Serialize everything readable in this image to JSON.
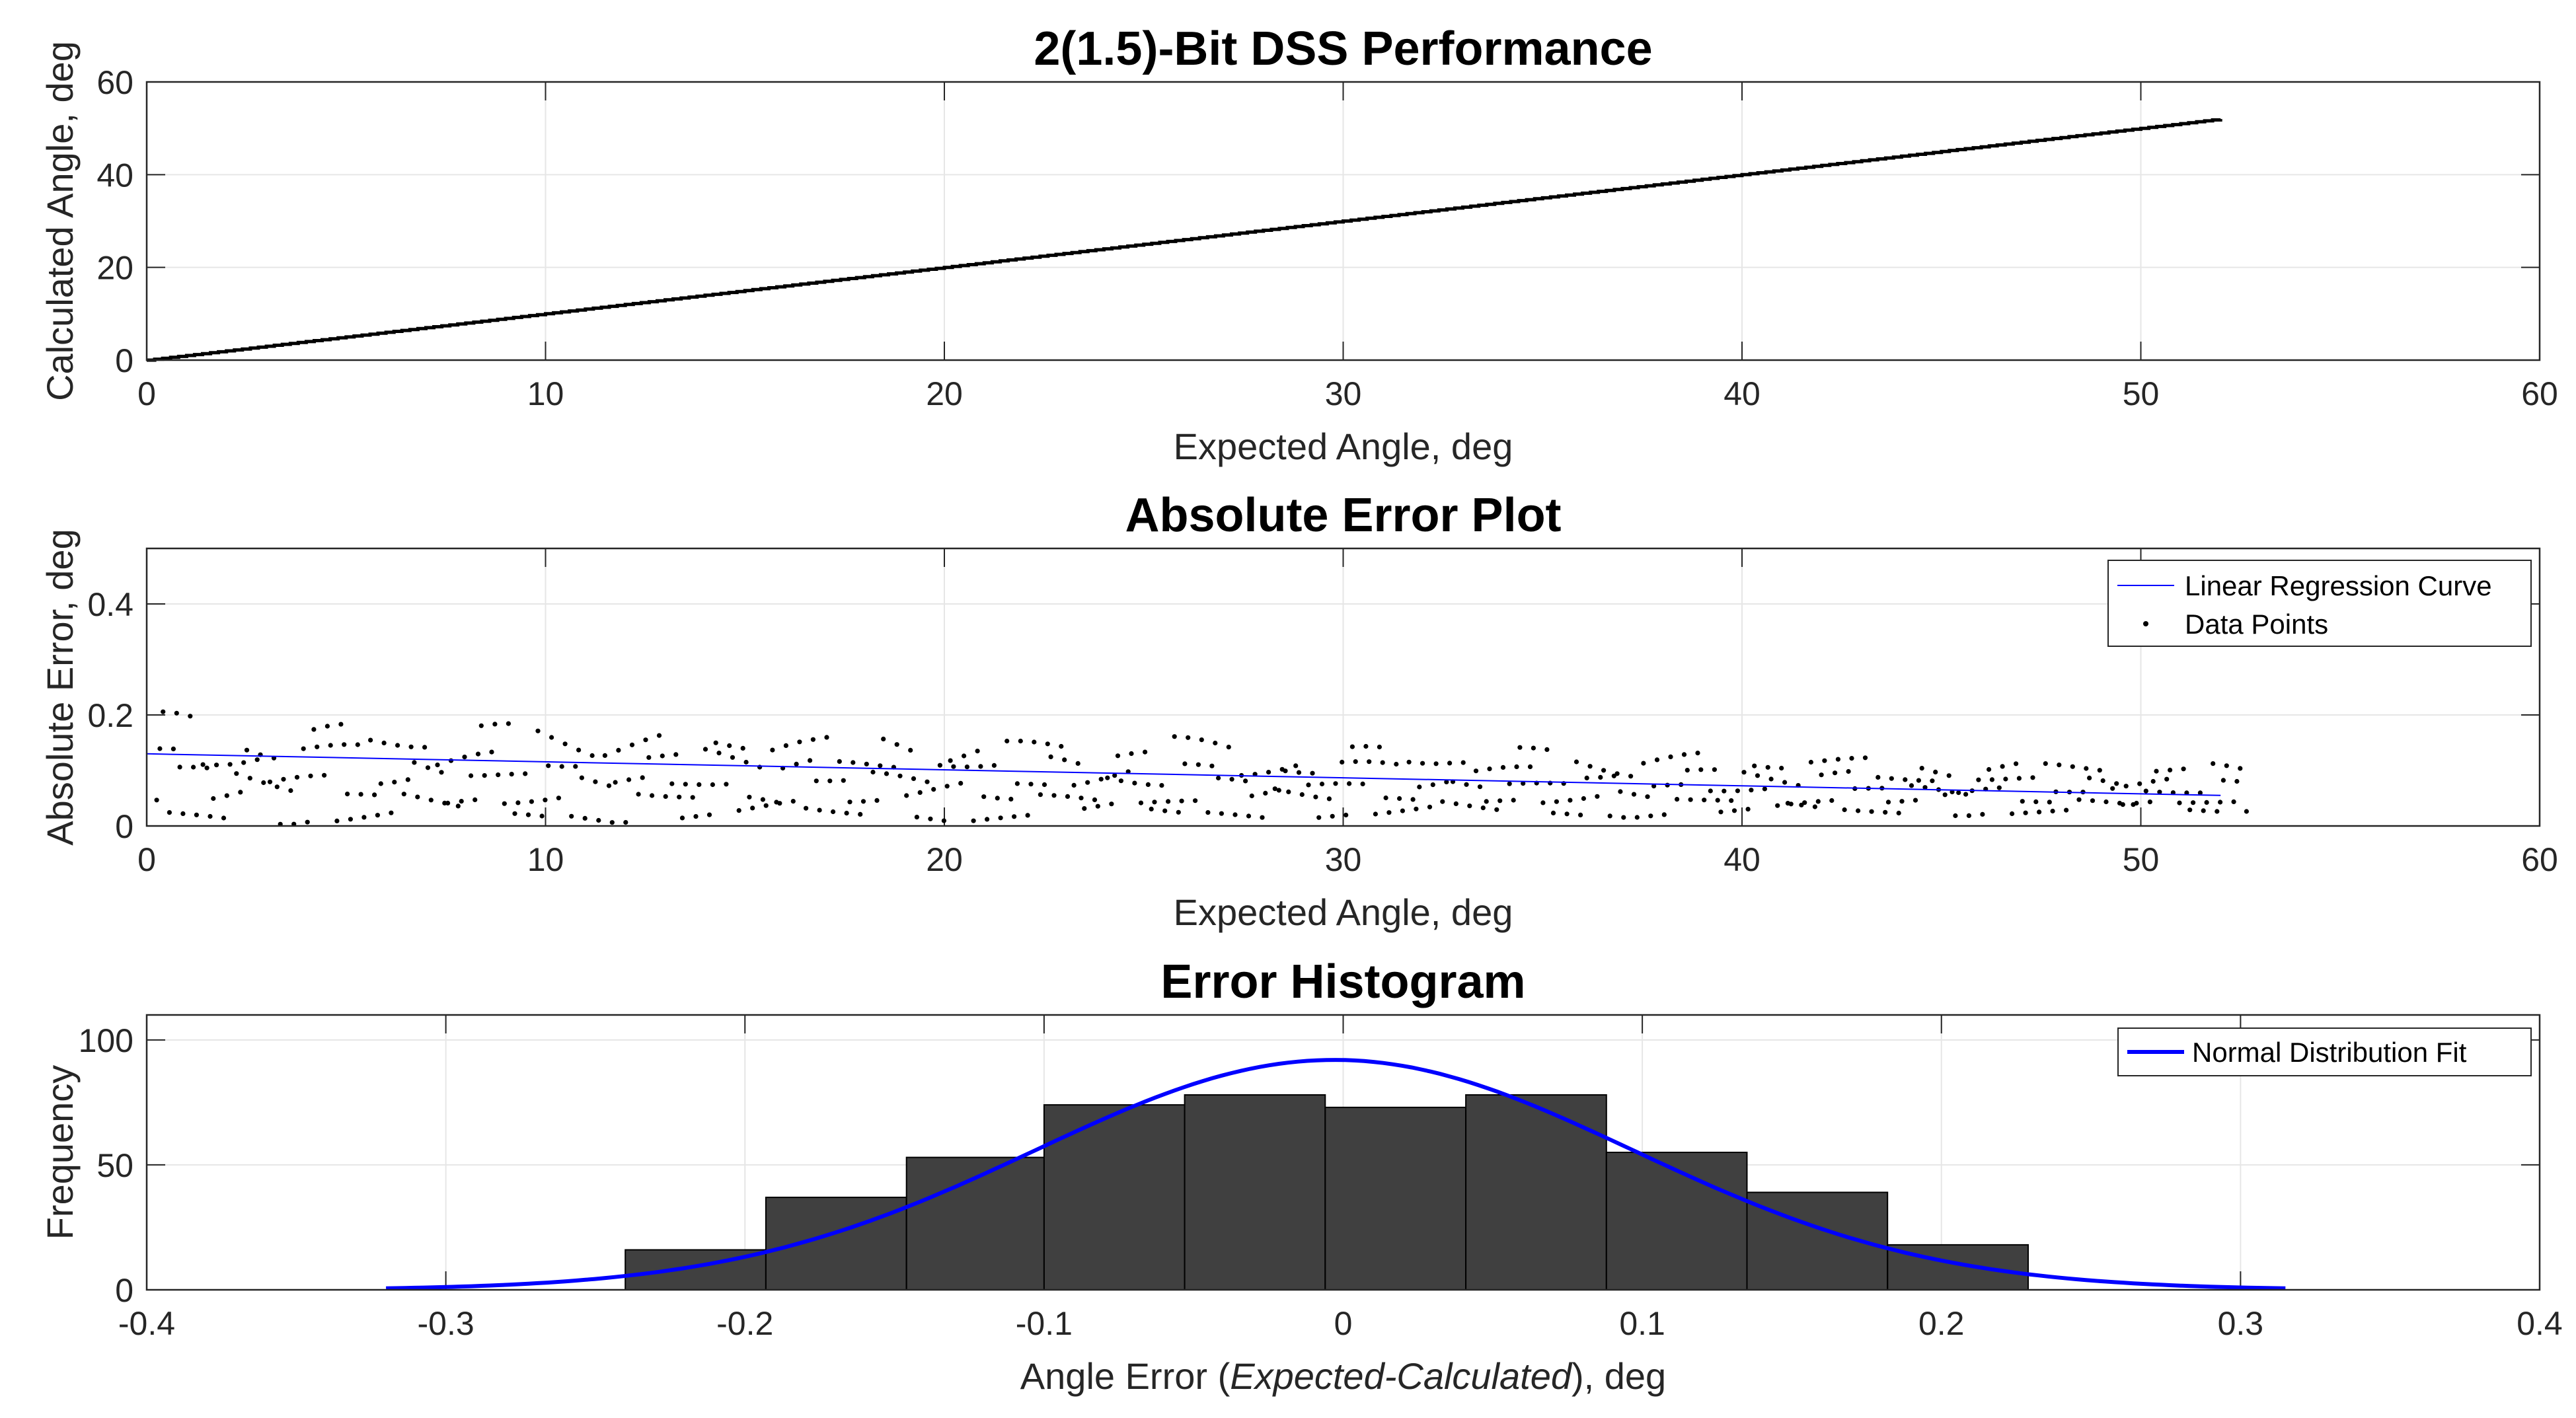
{
  "colors": {
    "background": "#ffffff",
    "axes_frame": "#262626",
    "grid": "#e6e6e6",
    "line_black": "#000000",
    "regression_blue": "#0000ff",
    "bar_fill": "#404040",
    "bar_edge": "#000000"
  },
  "chart_data": [
    {
      "type": "line",
      "title": "2(1.5)-Bit DSS Performance",
      "xlabel": "Expected Angle, deg",
      "ylabel": "Calculated Angle, deg",
      "xlim": [
        0,
        60
      ],
      "ylim": [
        0,
        60
      ],
      "xticks": [
        0,
        10,
        20,
        30,
        40,
        50,
        60
      ],
      "yticks": [
        0,
        20,
        40,
        60
      ],
      "grid": true,
      "series": [
        {
          "name": "Calculated Angle",
          "x": [
            0,
            52
          ],
          "y": [
            0,
            52
          ]
        }
      ]
    },
    {
      "type": "scatter",
      "title": "Absolute Error Plot",
      "xlabel": "Expected Angle, deg",
      "ylabel": "Absolute Error, deg",
      "xlim": [
        0,
        60
      ],
      "ylim": [
        0,
        0.5
      ],
      "xticks": [
        0,
        10,
        20,
        30,
        40,
        50,
        60
      ],
      "yticks": [
        0,
        0.2,
        0.4
      ],
      "grid": true,
      "legend_position": "top-right",
      "legend": [
        "Linear Regression Curve",
        "Data Points"
      ],
      "series": [
        {
          "name": "Linear Regression Curve",
          "x": [
            0,
            52
          ],
          "y": [
            0.13,
            0.055
          ]
        },
        {
          "name": "Data Points",
          "x_range": [
            0,
            52.4
          ],
          "note": "dense sawtooth scatter between 0 and about 0.22 deg"
        }
      ]
    },
    {
      "type": "bar",
      "title": "Error Histogram",
      "xlabel_parts": [
        "Angle Error (",
        "Expected-Calculated",
        "), deg"
      ],
      "ylabel": "Frequency",
      "xlim": [
        -0.4,
        0.4
      ],
      "ylim": [
        0,
        110
      ],
      "xticks": [
        -0.4,
        -0.3,
        -0.2,
        -0.1,
        0,
        0.1,
        0.2,
        0.3,
        0.4
      ],
      "yticks": [
        0,
        50,
        100
      ],
      "grid": true,
      "legend_position": "top-right",
      "legend": [
        "Normal Distribution Fit"
      ],
      "bin_edges": [
        -0.24,
        -0.193,
        -0.146,
        -0.1,
        -0.053,
        -0.006,
        0.041,
        0.088,
        0.135,
        0.182,
        0.229
      ],
      "values": [
        16,
        37,
        53,
        74,
        78,
        73,
        78,
        55,
        39,
        18
      ],
      "fit": {
        "name": "Normal Distribution Fit",
        "mean": -0.003,
        "sigma": 0.1,
        "peak": 92,
        "x_range": [
          -0.32,
          0.315
        ]
      }
    }
  ]
}
